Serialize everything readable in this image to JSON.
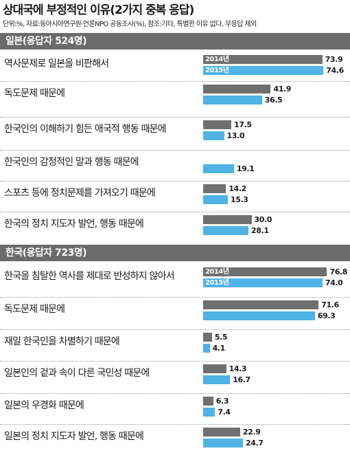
{
  "title": "상대국에 부정적인 이유(2가지 중복 응답)",
  "subtitle": "단위:%, 자료:동아시아연구원·언론NPO 공동조사(%), 참조:기타, 특별한 이유 없다, 무응답 제외",
  "colors": {
    "y2014": "#6f6f6f",
    "y2015": "#4fb3e6",
    "header": "#6b6b6b"
  },
  "chart_data": {
    "type": "bar",
    "orientation": "horizontal",
    "series_names": [
      "2014년",
      "2015년"
    ],
    "sections": [
      {
        "header": "일본(응답자 524명)",
        "items": [
          {
            "label": "역사문제로 일본을 비판해서",
            "v2014": 73.9,
            "v2015": 74.6,
            "show_year_labels": true
          },
          {
            "label": "독도문제 때문에",
            "v2014": 41.9,
            "v2015": 36.5
          },
          {
            "label": "한국인의 이해하기 힘든 애국적 행동 때문에",
            "v2014": 17.5,
            "v2015": 13.0
          },
          {
            "label": "한국인의 감정적인 말과 행동 때문에",
            "v2014": null,
            "v2015": 19.1
          },
          {
            "label": "스포츠 등에 정치문제를 가져오기 때문에",
            "v2014": 14.2,
            "v2015": 15.3
          },
          {
            "label": "한국의 정치 지도자 발언, 행동 때문에",
            "v2014": 30.0,
            "v2015": 28.1
          }
        ]
      },
      {
        "header": "한국(응답자 723명)",
        "items": [
          {
            "label": "한국을 침탈한 역사를 제대로 반성하지 않아서",
            "v2014": 76.8,
            "v2015": 74.0,
            "show_year_labels": true
          },
          {
            "label": "독도문제 때문에",
            "v2014": 71.6,
            "v2015": 69.3
          },
          {
            "label": "재일 한국인을 차별하기 때문에",
            "v2014": 5.5,
            "v2015": 4.1
          },
          {
            "label": "일본인의 겉과 속이 다른 국민성 때문에",
            "v2014": 14.3,
            "v2015": 16.7
          },
          {
            "label": "일본의 우경화 때문에",
            "v2014": 6.3,
            "v2015": 7.4
          },
          {
            "label": "일본의 정치 지도자 발언, 행동 때문에",
            "v2014": 22.9,
            "v2015": 24.7
          }
        ]
      }
    ]
  }
}
